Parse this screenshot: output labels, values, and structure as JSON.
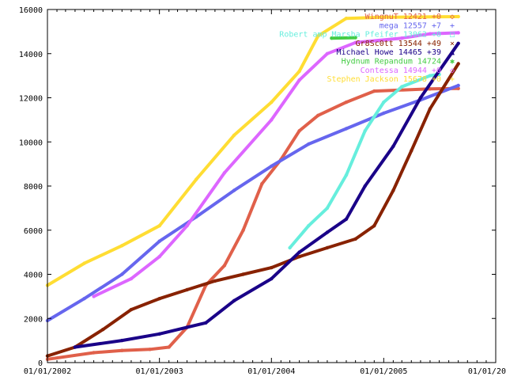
{
  "chart_data": {
    "type": "line",
    "title": "",
    "xlabel": "",
    "ylabel": "",
    "x_range": [
      "2002-01-01",
      "2006-01-01"
    ],
    "ylim": [
      0,
      16000
    ],
    "x_ticks": [
      {
        "date": "2002-01-01",
        "label": "01/01/2002"
      },
      {
        "date": "2003-01-01",
        "label": "01/01/2003"
      },
      {
        "date": "2004-01-01",
        "label": "01/01/2004"
      },
      {
        "date": "2005-01-01",
        "label": "01/01/2005"
      },
      {
        "date": "2006-01-01",
        "label": "01/01/20"
      }
    ],
    "y_ticks": [
      0,
      2000,
      4000,
      6000,
      8000,
      10000,
      12000,
      14000,
      16000
    ],
    "grid": false,
    "legend_position": "top-right",
    "series": [
      {
        "name": "WingnuT 12421 +0",
        "color": "#e0604a",
        "marker": "◇",
        "points": [
          [
            "2002-01-01",
            150
          ],
          [
            "2002-06-01",
            450
          ],
          [
            "2002-09-01",
            550
          ],
          [
            "2002-12-01",
            600
          ],
          [
            "2003-02-01",
            700
          ],
          [
            "2003-04-01",
            1600
          ],
          [
            "2003-06-01",
            3500
          ],
          [
            "2003-08-01",
            4400
          ],
          [
            "2003-10-01",
            6000
          ],
          [
            "2003-12-01",
            8100
          ],
          [
            "2004-02-01",
            9200
          ],
          [
            "2004-04-01",
            10500
          ],
          [
            "2004-06-01",
            11200
          ],
          [
            "2004-09-01",
            11800
          ],
          [
            "2004-12-01",
            12300
          ],
          [
            "2005-06-01",
            12400
          ],
          [
            "2005-09-01",
            12421
          ]
        ]
      },
      {
        "name": "mega 12557 +7",
        "color": "#6666ee",
        "marker": "+",
        "points": [
          [
            "2002-01-01",
            1900
          ],
          [
            "2002-05-01",
            2900
          ],
          [
            "2002-09-01",
            4000
          ],
          [
            "2003-01-01",
            5500
          ],
          [
            "2003-05-01",
            6600
          ],
          [
            "2003-09-01",
            7800
          ],
          [
            "2004-01-01",
            8900
          ],
          [
            "2004-05-01",
            9900
          ],
          [
            "2004-09-01",
            10600
          ],
          [
            "2005-01-01",
            11300
          ],
          [
            "2005-05-01",
            11900
          ],
          [
            "2005-09-01",
            12557
          ]
        ]
      },
      {
        "name": "Robert  amp  Marsha Pfeifer 13062 +0",
        "color": "#66eedd",
        "marker": "□",
        "points": [
          [
            "2004-03-01",
            5200
          ],
          [
            "2004-05-01",
            6200
          ],
          [
            "2004-07-01",
            7000
          ],
          [
            "2004-09-01",
            8500
          ],
          [
            "2004-11-01",
            10500
          ],
          [
            "2005-01-01",
            11800
          ],
          [
            "2005-03-01",
            12500
          ],
          [
            "2005-06-01",
            13000
          ],
          [
            "2005-07-01",
            13062
          ]
        ]
      },
      {
        "name": "Gr8Sc0tt 13544 +49",
        "color": "#882200",
        "marker": "×",
        "points": [
          [
            "2002-01-01",
            300
          ],
          [
            "2002-04-01",
            700
          ],
          [
            "2002-07-01",
            1500
          ],
          [
            "2002-10-01",
            2400
          ],
          [
            "2003-01-01",
            2900
          ],
          [
            "2003-04-01",
            3300
          ],
          [
            "2003-07-01",
            3700
          ],
          [
            "2003-10-01",
            4000
          ],
          [
            "2004-01-01",
            4300
          ],
          [
            "2004-04-01",
            4800
          ],
          [
            "2004-07-01",
            5200
          ],
          [
            "2004-10-01",
            5600
          ],
          [
            "2004-12-01",
            6200
          ],
          [
            "2005-02-01",
            7800
          ],
          [
            "2005-04-01",
            9600
          ],
          [
            "2005-06-01",
            11500
          ],
          [
            "2005-09-01",
            13544
          ]
        ]
      },
      {
        "name": "Michael Howe 14465 +39",
        "color": "#1a0088",
        "marker": "▲",
        "points": [
          [
            "2002-04-01",
            700
          ],
          [
            "2002-09-01",
            1000
          ],
          [
            "2003-01-01",
            1300
          ],
          [
            "2003-04-01",
            1600
          ],
          [
            "2003-06-01",
            1800
          ],
          [
            "2003-09-01",
            2800
          ],
          [
            "2004-01-01",
            3800
          ],
          [
            "2004-04-01",
            5000
          ],
          [
            "2004-07-01",
            5900
          ],
          [
            "2004-09-01",
            6500
          ],
          [
            "2004-11-01",
            8000
          ],
          [
            "2005-02-01",
            9800
          ],
          [
            "2005-05-01",
            12000
          ],
          [
            "2005-09-01",
            14465
          ]
        ]
      },
      {
        "name": "Hydnum Repandum 14724",
        "color": "#44cc44",
        "marker": "✱",
        "points": [
          [
            "2004-07-15",
            14700
          ],
          [
            "2004-10-01",
            14724
          ]
        ]
      },
      {
        "name": "Contessa 14944 +0",
        "color": "#dd66ff",
        "marker": "◇",
        "points": [
          [
            "2002-06-01",
            3000
          ],
          [
            "2002-10-01",
            3800
          ],
          [
            "2003-01-01",
            4800
          ],
          [
            "2003-04-01",
            6200
          ],
          [
            "2003-08-01",
            8600
          ],
          [
            "2004-01-01",
            11000
          ],
          [
            "2004-04-01",
            12800
          ],
          [
            "2004-07-01",
            14000
          ],
          [
            "2004-10-01",
            14500
          ],
          [
            "2005-03-01",
            14700
          ],
          [
            "2005-06-01",
            14900
          ],
          [
            "2005-09-01",
            14944
          ]
        ]
      },
      {
        "name": "Stephen Jackson 15678 +0",
        "color": "#ffdd33",
        "marker": "+",
        "points": [
          [
            "2002-01-01",
            3500
          ],
          [
            "2002-05-01",
            4500
          ],
          [
            "2002-09-01",
            5300
          ],
          [
            "2003-01-01",
            6200
          ],
          [
            "2003-05-01",
            8300
          ],
          [
            "2003-09-01",
            10300
          ],
          [
            "2004-01-01",
            11800
          ],
          [
            "2004-04-01",
            13200
          ],
          [
            "2004-06-01",
            14800
          ],
          [
            "2004-09-01",
            15600
          ],
          [
            "2005-01-01",
            15650
          ],
          [
            "2005-09-01",
            15678
          ]
        ]
      }
    ]
  }
}
